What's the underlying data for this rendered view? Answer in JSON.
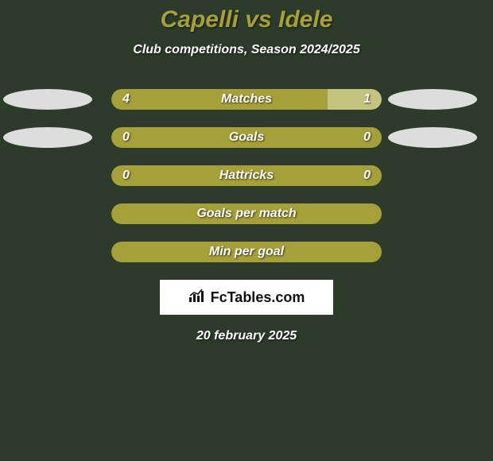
{
  "background_color": "#2d3b2b",
  "title": {
    "text": "Capelli vs Idele",
    "color": "#a6a03a",
    "fontsize": 30
  },
  "subtitle": {
    "text": "Club competitions, Season 2024/2025",
    "color": "#ffffff",
    "fontsize": 16
  },
  "bar_track_width": 340,
  "bar_track_height": 26,
  "player_left_color": "#a6a03a",
  "player_right_color": "#c5c47e",
  "ellipse_color": "#dddddd",
  "rows": [
    {
      "label": "Matches",
      "left_value": "4",
      "right_value": "1",
      "left_num": 4,
      "right_num": 1,
      "show_values": true,
      "show_left_ellipse": true,
      "show_right_ellipse": true
    },
    {
      "label": "Goals",
      "left_value": "0",
      "right_value": "0",
      "left_num": 0,
      "right_num": 0,
      "show_values": true,
      "show_left_ellipse": true,
      "show_right_ellipse": true
    },
    {
      "label": "Hattricks",
      "left_value": "0",
      "right_value": "0",
      "left_num": 0,
      "right_num": 0,
      "show_values": true,
      "show_left_ellipse": false,
      "show_right_ellipse": false
    },
    {
      "label": "Goals per match",
      "left_value": "",
      "right_value": "",
      "left_num": 0,
      "right_num": 0,
      "show_values": false,
      "show_left_ellipse": false,
      "show_right_ellipse": false
    },
    {
      "label": "Min per goal",
      "left_value": "",
      "right_value": "",
      "left_num": 0,
      "right_num": 0,
      "show_values": false,
      "show_left_ellipse": false,
      "show_right_ellipse": false
    }
  ],
  "logo": {
    "text": "FcTables.com",
    "bg": "#ffffff",
    "text_color": "#111111"
  },
  "date": "20 february 2025"
}
